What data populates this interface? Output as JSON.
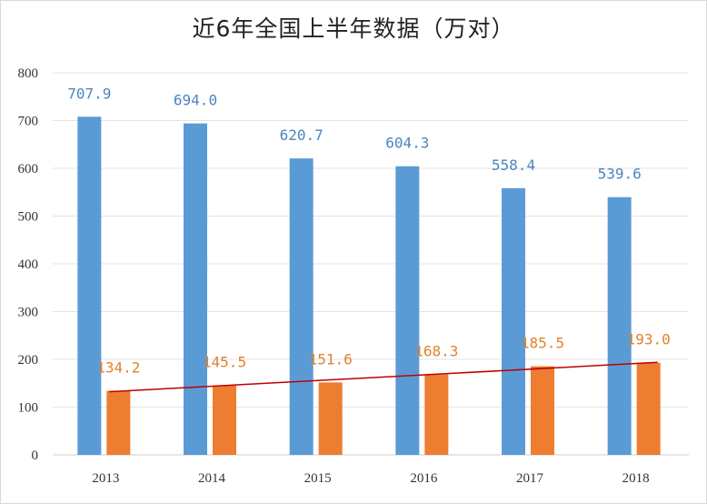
{
  "chart_data": {
    "type": "bar",
    "title": "近6年全国上半年数据（万对）",
    "categories": [
      "2013",
      "2014",
      "2015",
      "2016",
      "2017",
      "2018"
    ],
    "series": [
      {
        "values": [
          707.9,
          694.0,
          620.7,
          604.3,
          558.4,
          539.6
        ],
        "color": "#5b9bd5",
        "labels": [
          "707.9",
          "694.0",
          "620.7",
          "604.3",
          "558.4",
          "539.6"
        ]
      },
      {
        "values": [
          134.2,
          145.5,
          151.6,
          168.3,
          185.5,
          193.0
        ],
        "color": "#ed7d31",
        "labels": [
          "134.2",
          "145.5",
          "151.6",
          "168.3",
          "185.5",
          "193.0"
        ],
        "trendline": "linear",
        "trendline_color": "#c00000"
      }
    ],
    "yticks": [
      "0",
      "100",
      "200",
      "300",
      "400",
      "500",
      "600",
      "700",
      "800"
    ],
    "ylim": [
      0,
      800
    ],
    "grid": true,
    "label_colors": {
      "series0": "#4a86c0",
      "series1": "#e0822e"
    }
  }
}
